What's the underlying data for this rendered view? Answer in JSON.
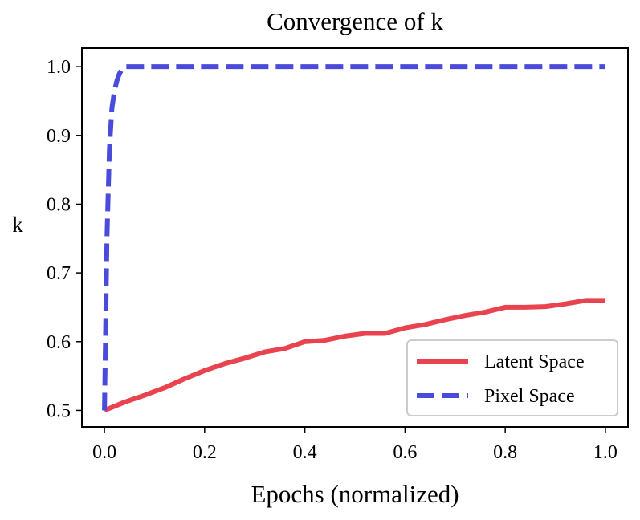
{
  "chart_data": {
    "type": "line",
    "title": "Convergence of k",
    "xlabel": "Epochs (normalized)",
    "ylabel": "k",
    "xlim": [
      -0.045,
      1.045
    ],
    "ylim": [
      0.476,
      1.027
    ],
    "xticks": [
      0.0,
      0.2,
      0.4,
      0.6,
      0.8,
      1.0
    ],
    "xtick_labels": [
      "0.0",
      "0.2",
      "0.4",
      "0.6",
      "0.8",
      "1.0"
    ],
    "yticks": [
      0.5,
      0.6,
      0.7,
      0.8,
      0.9,
      1.0
    ],
    "ytick_labels": [
      "0.5",
      "0.6",
      "0.7",
      "0.8",
      "0.9",
      "1.0"
    ],
    "grid": false,
    "legend_position": "lower-right",
    "series": [
      {
        "name": "Latent Space",
        "color": "#e8434f",
        "style": "solid",
        "x": [
          0.0,
          0.04,
          0.08,
          0.12,
          0.16,
          0.2,
          0.24,
          0.28,
          0.32,
          0.36,
          0.4,
          0.44,
          0.48,
          0.52,
          0.56,
          0.6,
          0.64,
          0.68,
          0.72,
          0.76,
          0.8,
          0.84,
          0.88,
          0.92,
          0.96,
          1.0
        ],
        "y": [
          0.5,
          0.512,
          0.522,
          0.533,
          0.546,
          0.558,
          0.568,
          0.576,
          0.585,
          0.59,
          0.6,
          0.602,
          0.608,
          0.612,
          0.612,
          0.62,
          0.625,
          0.632,
          0.638,
          0.643,
          0.65,
          0.65,
          0.651,
          0.655,
          0.66,
          0.66
        ]
      },
      {
        "name": "Pixel Space",
        "color": "#4a4adb",
        "style": "dashed",
        "x": [
          0.0,
          0.005,
          0.01,
          0.015,
          0.02,
          0.025,
          0.03,
          0.035,
          0.04,
          0.1,
          0.2,
          0.3,
          0.4,
          0.5,
          0.6,
          0.7,
          0.8,
          0.9,
          1.0
        ],
        "y": [
          0.5,
          0.75,
          0.88,
          0.94,
          0.965,
          0.98,
          0.99,
          0.996,
          1.0,
          1.0,
          1.0,
          1.0,
          1.0,
          1.0,
          1.0,
          1.0,
          1.0,
          1.0,
          1.0
        ]
      }
    ]
  }
}
